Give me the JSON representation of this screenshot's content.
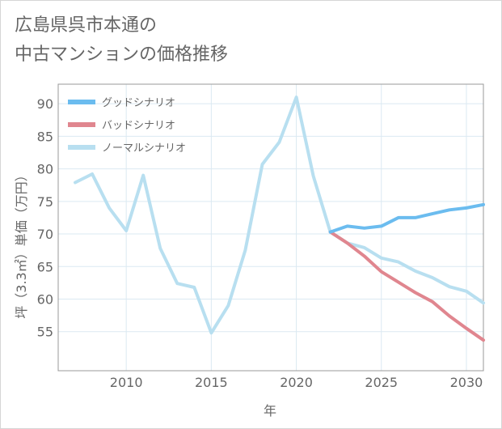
{
  "title_lines": [
    "広島県呉市本通の",
    "中古マンションの価格推移"
  ],
  "colors": {
    "good": "#6bbcef",
    "bad": "#e0868f",
    "normal": "#b8dff0",
    "axis_text": "#666666",
    "grid": "#dbe9f2",
    "plot_border": "#999999"
  },
  "chart_data": {
    "type": "line",
    "xlabel": "年",
    "ylabel": "坪（3.3㎡）単価（万円）",
    "xlim": [
      2006,
      2031
    ],
    "ylim": [
      49,
      93
    ],
    "x_ticks": [
      2010,
      2015,
      2020,
      2025,
      2030
    ],
    "y_ticks": [
      55,
      60,
      65,
      70,
      75,
      80,
      85,
      90
    ],
    "grid": true,
    "legend_position": "top-left",
    "series": [
      {
        "name": "グッドシナリオ",
        "color": "#6bbcef",
        "x": [
          2022,
          2023,
          2024,
          2025,
          2026,
          2027,
          2028,
          2029,
          2030,
          2031
        ],
        "y": [
          70.3,
          71.2,
          70.9,
          71.2,
          72.5,
          72.5,
          73.1,
          73.7,
          74.0,
          74.5
        ]
      },
      {
        "name": "バッドシナリオ",
        "color": "#e0868f",
        "x": [
          2022,
          2023,
          2024,
          2025,
          2026,
          2027,
          2028,
          2029,
          2030,
          2031
        ],
        "y": [
          70.3,
          68.6,
          66.6,
          64.2,
          62.6,
          61.0,
          59.6,
          57.4,
          55.5,
          53.7
        ]
      },
      {
        "name": "ノーマルシナリオ",
        "color": "#b8dff0",
        "x": [
          2007,
          2008,
          2009,
          2010,
          2011,
          2012,
          2013,
          2014,
          2015,
          2016,
          2017,
          2018,
          2019,
          2020,
          2021,
          2022,
          2023,
          2024,
          2025,
          2026,
          2027,
          2028,
          2029,
          2030,
          2031
        ],
        "y": [
          77.9,
          79.2,
          74.0,
          70.5,
          79.0,
          67.8,
          62.4,
          61.8,
          54.8,
          59.0,
          67.5,
          80.7,
          84.1,
          91.0,
          78.9,
          70.3,
          68.6,
          67.9,
          66.3,
          65.7,
          64.3,
          63.3,
          61.9,
          61.2,
          59.4
        ]
      }
    ]
  }
}
